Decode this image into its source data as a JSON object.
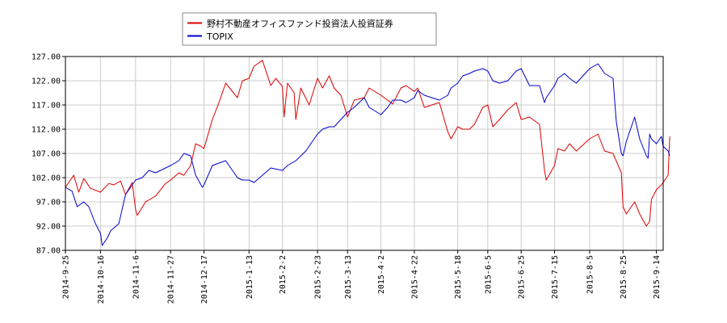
{
  "chart_data": {
    "type": "line",
    "ylim": [
      87,
      127
    ],
    "y_ticks": [
      "87.00",
      "92.00",
      "97.00",
      "102.00",
      "107.00",
      "112.00",
      "117.00",
      "122.00",
      "127.00"
    ],
    "x_ticks": [
      "2014-9-25",
      "2014-10-16",
      "2014-11-6",
      "2014-11-27",
      "2014-12-17",
      "2015-1-13",
      "2015-2-2",
      "2015-2-23",
      "2015-3-13",
      "2015-4-2",
      "2015-4-22",
      "2015-5-18",
      "2015-6-5",
      "2015-6-25",
      "2015-7-15",
      "2015-8-5",
      "2015-8-25",
      "2015-9-14"
    ],
    "grid": true,
    "legend_position": "top",
    "series": [
      {
        "name": "野村不動産オフィスファンド投資法人投資証券",
        "color": "#dd0000",
        "points": [
          [
            "2014-9-25",
            100.0
          ],
          [
            "2014-9-30",
            102.5
          ],
          [
            "2014-10-3",
            99.0
          ],
          [
            "2014-10-6",
            101.8
          ],
          [
            "2014-10-10",
            99.8
          ],
          [
            "2014-10-16",
            99.0
          ],
          [
            "2014-10-21",
            100.8
          ],
          [
            "2014-10-24",
            100.5
          ],
          [
            "2014-10-28",
            101.3
          ],
          [
            "2014-10-31",
            98.5
          ],
          [
            "2014-11-4",
            101.0
          ],
          [
            "2014-11-6",
            95.5
          ],
          [
            "2014-11-7",
            94.2
          ],
          [
            "2014-11-12",
            97.0
          ],
          [
            "2014-11-18",
            98.2
          ],
          [
            "2014-11-24",
            100.8
          ],
          [
            "2014-11-27",
            101.5
          ],
          [
            "2014-12-2",
            103.0
          ],
          [
            "2014-12-5",
            102.5
          ],
          [
            "2014-12-9",
            104.5
          ],
          [
            "2014-12-12",
            109.0
          ],
          [
            "2014-12-15",
            108.5
          ],
          [
            "2014-12-17",
            108.0
          ],
          [
            "2014-12-22",
            114.0
          ],
          [
            "2014-12-26",
            117.5
          ],
          [
            "2014-12-30",
            121.5
          ],
          [
            "2015-1-6",
            118.5
          ],
          [
            "2015-1-9",
            122.0
          ],
          [
            "2015-1-13",
            122.5
          ],
          [
            "2015-1-16",
            125.0
          ],
          [
            "2015-1-21",
            126.2
          ],
          [
            "2015-1-26",
            121.0
          ],
          [
            "2015-1-29",
            122.5
          ],
          [
            "2015-2-2",
            120.8
          ],
          [
            "2015-2-3",
            114.5
          ],
          [
            "2015-2-5",
            121.5
          ],
          [
            "2015-2-9",
            119.5
          ],
          [
            "2015-2-10",
            114.0
          ],
          [
            "2015-2-13",
            120.5
          ],
          [
            "2015-2-18",
            117.0
          ],
          [
            "2015-2-23",
            122.5
          ],
          [
            "2015-2-26",
            120.5
          ],
          [
            "2015-3-2",
            123.0
          ],
          [
            "2015-3-5",
            120.5
          ],
          [
            "2015-3-9",
            119.0
          ],
          [
            "2015-3-13",
            114.5
          ],
          [
            "2015-3-17",
            118.0
          ],
          [
            "2015-3-23",
            118.5
          ],
          [
            "2015-3-26",
            120.5
          ],
          [
            "2015-4-2",
            119.0
          ],
          [
            "2015-4-6",
            118.0
          ],
          [
            "2015-4-9",
            117.2
          ],
          [
            "2015-4-14",
            120.5
          ],
          [
            "2015-4-17",
            121.0
          ],
          [
            "2015-4-22",
            119.8
          ],
          [
            "2015-4-24",
            120.5
          ],
          [
            "2015-4-28",
            116.5
          ],
          [
            "2015-5-7",
            117.5
          ],
          [
            "2015-5-12",
            111.5
          ],
          [
            "2015-5-14",
            110.0
          ],
          [
            "2015-5-18",
            112.5
          ],
          [
            "2015-5-21",
            112.0
          ],
          [
            "2015-5-25",
            112.0
          ],
          [
            "2015-5-28",
            113.0
          ],
          [
            "2015-6-2",
            116.5
          ],
          [
            "2015-6-5",
            117.0
          ],
          [
            "2015-6-8",
            112.5
          ],
          [
            "2015-6-12",
            114.0
          ],
          [
            "2015-6-17",
            116.0
          ],
          [
            "2015-6-22",
            117.5
          ],
          [
            "2015-6-25",
            114.0
          ],
          [
            "2015-6-30",
            114.5
          ],
          [
            "2015-7-6",
            113.0
          ],
          [
            "2015-7-9",
            103.5
          ],
          [
            "2015-7-10",
            101.5
          ],
          [
            "2015-7-15",
            104.5
          ],
          [
            "2015-7-17",
            108.0
          ],
          [
            "2015-7-21",
            107.5
          ],
          [
            "2015-7-24",
            109.0
          ],
          [
            "2015-7-28",
            107.5
          ],
          [
            "2015-8-5",
            110.0
          ],
          [
            "2015-8-10",
            111.0
          ],
          [
            "2015-8-14",
            107.5
          ],
          [
            "2015-8-19",
            107.0
          ],
          [
            "2015-8-24",
            103.0
          ],
          [
            "2015-8-25",
            96.0
          ],
          [
            "2015-8-27",
            94.5
          ],
          [
            "2015-9-1",
            97.0
          ],
          [
            "2015-9-4",
            94.5
          ],
          [
            "2015-9-8",
            92.0
          ],
          [
            "2015-9-10",
            93.0
          ],
          [
            "2015-9-11",
            97.5
          ],
          [
            "2015-9-14",
            99.5
          ],
          [
            "2015-9-17",
            100.5
          ],
          [
            "2015-9-18",
            101.0
          ],
          [
            "2015-9-21",
            102.5
          ],
          [
            "2015-9-22",
            110.5
          ]
        ]
      },
      {
        "name": "TOPIX",
        "color": "#0000cc",
        "points": [
          [
            "2014-9-25",
            100.0
          ],
          [
            "2014-9-29",
            99.2
          ],
          [
            "2014-10-2",
            96.0
          ],
          [
            "2014-10-6",
            97.0
          ],
          [
            "2014-10-9",
            96.0
          ],
          [
            "2014-10-13",
            92.5
          ],
          [
            "2014-10-16",
            90.5
          ],
          [
            "2014-10-17",
            88.0
          ],
          [
            "2014-10-20",
            89.5
          ],
          [
            "2014-10-22",
            91.0
          ],
          [
            "2014-10-27",
            92.5
          ],
          [
            "2014-10-31",
            98.5
          ],
          [
            "2014-11-4",
            100.5
          ],
          [
            "2014-11-6",
            101.5
          ],
          [
            "2014-11-10",
            102.0
          ],
          [
            "2014-11-14",
            103.5
          ],
          [
            "2014-11-18",
            103.0
          ],
          [
            "2014-11-24",
            104.0
          ],
          [
            "2014-11-27",
            104.5
          ],
          [
            "2014-12-2",
            105.5
          ],
          [
            "2014-12-5",
            107.0
          ],
          [
            "2014-12-9",
            106.5
          ],
          [
            "2014-12-12",
            102.5
          ],
          [
            "2014-12-16",
            100.0
          ],
          [
            "2014-12-17",
            100.5
          ],
          [
            "2014-12-22",
            104.5
          ],
          [
            "2014-12-26",
            105.0
          ],
          [
            "2014-12-30",
            105.5
          ],
          [
            "2015-1-6",
            102.0
          ],
          [
            "2015-1-9",
            101.5
          ],
          [
            "2015-1-13",
            101.5
          ],
          [
            "2015-1-16",
            101.0
          ],
          [
            "2015-1-21",
            102.5
          ],
          [
            "2015-1-26",
            104.0
          ],
          [
            "2015-2-2",
            103.5
          ],
          [
            "2015-2-5",
            104.5
          ],
          [
            "2015-2-10",
            105.5
          ],
          [
            "2015-2-16",
            107.5
          ],
          [
            "2015-2-23",
            111.0
          ],
          [
            "2015-2-26",
            112.0
          ],
          [
            "2015-3-2",
            112.5
          ],
          [
            "2015-3-5",
            112.5
          ],
          [
            "2015-3-9",
            114.0
          ],
          [
            "2015-3-13",
            115.5
          ],
          [
            "2015-3-17",
            116.5
          ],
          [
            "2015-3-23",
            118.5
          ],
          [
            "2015-3-26",
            116.5
          ],
          [
            "2015-4-2",
            115.0
          ],
          [
            "2015-4-6",
            116.5
          ],
          [
            "2015-4-9",
            118.0
          ],
          [
            "2015-4-14",
            118.0
          ],
          [
            "2015-4-17",
            117.5
          ],
          [
            "2015-4-22",
            118.5
          ],
          [
            "2015-4-24",
            120.0
          ],
          [
            "2015-4-28",
            119.0
          ],
          [
            "2015-5-7",
            118.0
          ],
          [
            "2015-5-12",
            119.0
          ],
          [
            "2015-5-14",
            120.5
          ],
          [
            "2015-5-18",
            121.5
          ],
          [
            "2015-5-21",
            123.0
          ],
          [
            "2015-5-25",
            123.5
          ],
          [
            "2015-5-28",
            124.0
          ],
          [
            "2015-6-2",
            124.5
          ],
          [
            "2015-6-5",
            124.0
          ],
          [
            "2015-6-8",
            122.0
          ],
          [
            "2015-6-12",
            121.5
          ],
          [
            "2015-6-17",
            122.0
          ],
          [
            "2015-6-22",
            124.0
          ],
          [
            "2015-6-25",
            124.5
          ],
          [
            "2015-6-30",
            121.0
          ],
          [
            "2015-7-6",
            121.0
          ],
          [
            "2015-7-9",
            117.5
          ],
          [
            "2015-7-10",
            118.5
          ],
          [
            "2015-7-15",
            121.0
          ],
          [
            "2015-7-17",
            122.5
          ],
          [
            "2015-7-21",
            123.5
          ],
          [
            "2015-7-24",
            122.5
          ],
          [
            "2015-7-28",
            121.5
          ],
          [
            "2015-8-5",
            124.5
          ],
          [
            "2015-8-10",
            125.5
          ],
          [
            "2015-8-14",
            123.5
          ],
          [
            "2015-8-19",
            122.5
          ],
          [
            "2015-8-20",
            118.0
          ],
          [
            "2015-8-21",
            113.5
          ],
          [
            "2015-8-24",
            107.0
          ],
          [
            "2015-8-25",
            106.5
          ],
          [
            "2015-8-27",
            109.5
          ],
          [
            "2015-9-1",
            114.5
          ],
          [
            "2015-9-4",
            110.0
          ],
          [
            "2015-9-8",
            106.5
          ],
          [
            "2015-9-9",
            106.0
          ],
          [
            "2015-9-10",
            111.0
          ],
          [
            "2015-9-11",
            110.0
          ],
          [
            "2015-9-14",
            109.0
          ],
          [
            "2015-9-17",
            110.5
          ],
          [
            "2015-9-18",
            108.5
          ],
          [
            "2015-9-21",
            107.5
          ],
          [
            "2015-9-22",
            106.5
          ]
        ]
      }
    ]
  }
}
